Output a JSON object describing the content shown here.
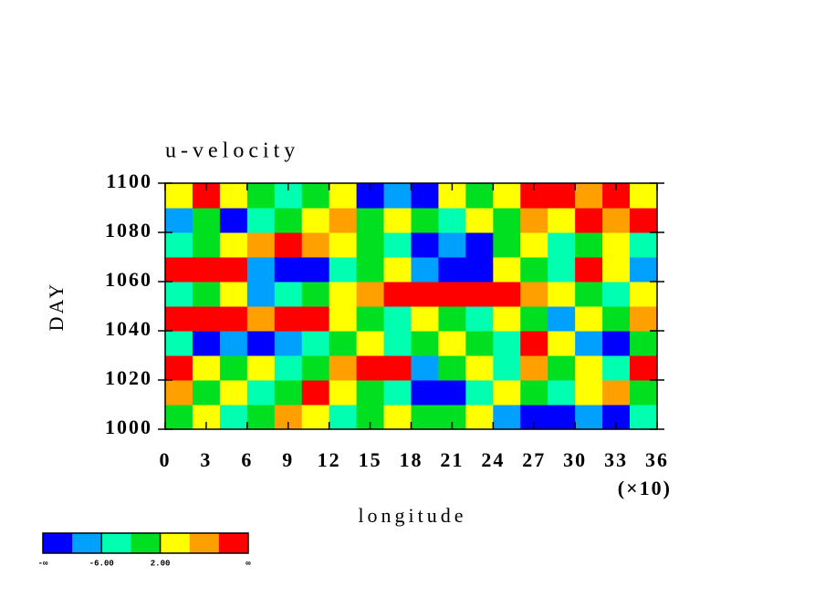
{
  "chart_data": {
    "type": "heatmap",
    "title": "u-velocity",
    "x_label": "longitude",
    "x_multiplier": "(×10)",
    "y_label": "DAY",
    "x": [
      1,
      3,
      5,
      7,
      9,
      11,
      13,
      15,
      17,
      19,
      21,
      23,
      25,
      27,
      29,
      31,
      33,
      35
    ],
    "y": [
      1005,
      1015,
      1025,
      1035,
      1045,
      1055,
      1065,
      1075,
      1085,
      1095
    ],
    "z": [
      [
        0,
        4,
        -4,
        0,
        8,
        4,
        -4,
        0,
        4,
        -2,
        0,
        4,
        -8,
        -12,
        -12,
        -8,
        -12,
        -4
      ],
      [
        8,
        0,
        4,
        -4,
        0,
        12,
        4,
        0,
        -4,
        -12,
        -12,
        -4,
        4,
        0,
        -4,
        4,
        8,
        0
      ],
      [
        12,
        4,
        0,
        4,
        -4,
        0,
        8,
        12,
        12,
        -8,
        0,
        4,
        -4,
        8,
        0,
        4,
        -4,
        12
      ],
      [
        -4,
        -12,
        -8,
        -12,
        -8,
        -4,
        0,
        4,
        -4,
        0,
        4,
        0,
        -4,
        12,
        4,
        -8,
        -12,
        0
      ],
      [
        12,
        12,
        12,
        8,
        12,
        12,
        4,
        0,
        -4,
        4,
        0,
        -4,
        4,
        0,
        -8,
        4,
        0,
        8
      ],
      [
        -4,
        0,
        4,
        -8,
        -4,
        0,
        4,
        8,
        12,
        12,
        12,
        12,
        12,
        8,
        4,
        0,
        -4,
        4
      ],
      [
        12,
        12,
        12,
        -8,
        -12,
        -12,
        -4,
        0,
        4,
        -8,
        -12,
        -12,
        4,
        0,
        -4,
        12,
        4,
        -8
      ],
      [
        -4,
        0,
        4,
        8,
        12,
        8,
        4,
        0,
        -4,
        -12,
        -8,
        -12,
        0,
        4,
        -4,
        0,
        4,
        -4
      ],
      [
        -8,
        0,
        -12,
        -4,
        0,
        4,
        8,
        0,
        4,
        0,
        -4,
        4,
        0,
        8,
        4,
        12,
        8,
        12
      ],
      [
        4,
        12,
        4,
        0,
        -4,
        0,
        4,
        -12,
        -8,
        -12,
        4,
        0,
        4,
        12,
        12,
        8,
        12,
        4
      ]
    ],
    "xlim": [
      0,
      36
    ],
    "xticks": [
      0,
      3,
      6,
      9,
      12,
      15,
      18,
      21,
      24,
      27,
      30,
      33,
      36
    ],
    "ylim": [
      1000,
      1100
    ],
    "yticks": [
      1000,
      1020,
      1040,
      1060,
      1080,
      1100
    ],
    "levels": [
      -10,
      -6,
      -2,
      2,
      6,
      10
    ],
    "colors": [
      "#0000ff",
      "#00a0ff",
      "#00ffb0",
      "#00e020",
      "#ffff00",
      "#ffa000",
      "#ff0000"
    ],
    "colorbar_ticks": [
      {
        "value": -6,
        "label": "-6.00"
      },
      {
        "value": 2,
        "label": "2.00"
      }
    ],
    "colorbar_end_labels": [
      "-∞",
      "∞"
    ]
  }
}
